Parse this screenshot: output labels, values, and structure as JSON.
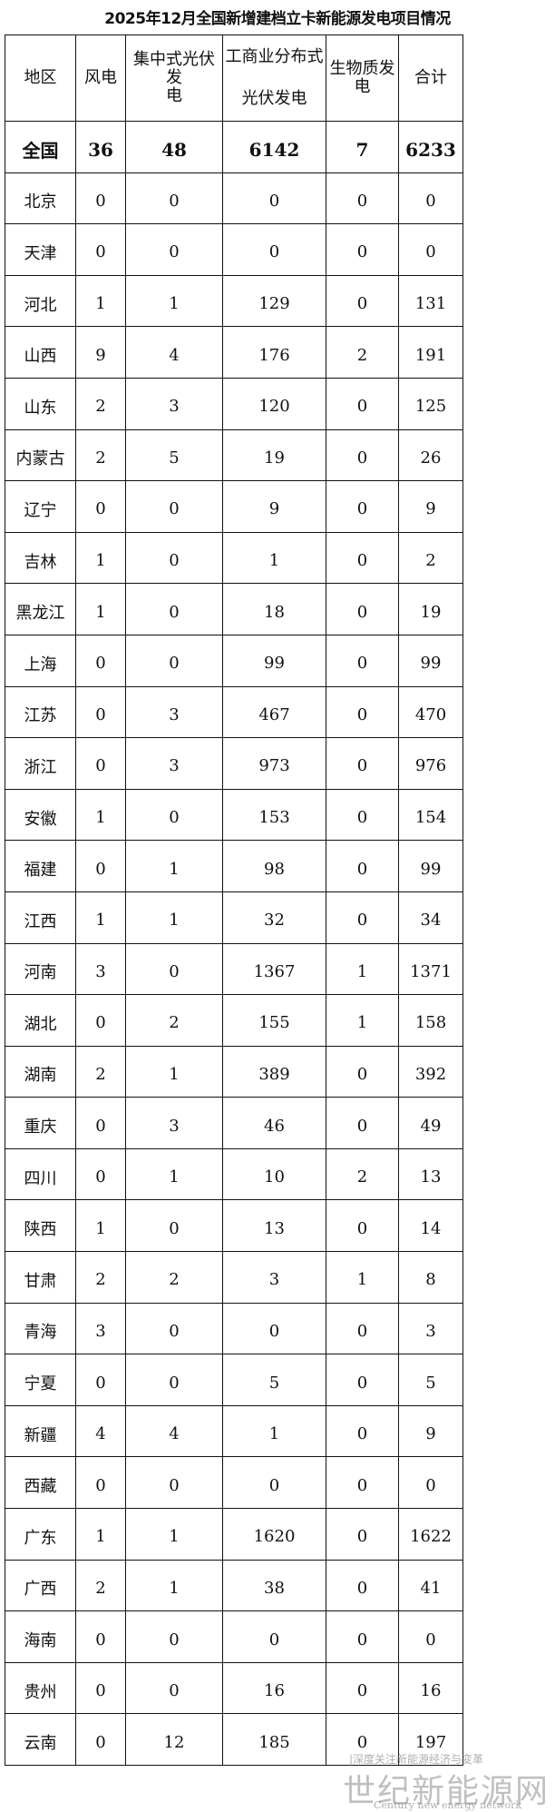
{
  "title": "2025年12月全国新增建档立卡新能源发电项目情况",
  "headers": [
    "地区",
    "风电",
    "集中式光伏发电",
    "工商业分布式光伏发电",
    "生物质发电",
    "合计"
  ],
  "header_lines": {
    "col2": [
      "集中式光伏发",
      "电"
    ],
    "col3": [
      "工商业分布式",
      "光伏发电"
    ],
    "col4": [
      "生物质发",
      "电"
    ]
  },
  "rows": [
    [
      "全国",
      "36",
      "48",
      "6142",
      "7",
      "6233"
    ],
    [
      "北京",
      "0",
      "0",
      "0",
      "0",
      "0"
    ],
    [
      "天津",
      "0",
      "0",
      "0",
      "0",
      "0"
    ],
    [
      "河北",
      "1",
      "1",
      "129",
      "0",
      "131"
    ],
    [
      "山西",
      "9",
      "4",
      "176",
      "2",
      "191"
    ],
    [
      "山东",
      "2",
      "3",
      "120",
      "0",
      "125"
    ],
    [
      "内蒙古",
      "2",
      "5",
      "19",
      "0",
      "26"
    ],
    [
      "辽宁",
      "0",
      "0",
      "9",
      "0",
      "9"
    ],
    [
      "吉林",
      "1",
      "0",
      "1",
      "0",
      "2"
    ],
    [
      "黑龙江",
      "1",
      "0",
      "18",
      "0",
      "19"
    ],
    [
      "上海",
      "0",
      "0",
      "99",
      "0",
      "99"
    ],
    [
      "江苏",
      "0",
      "3",
      "467",
      "0",
      "470"
    ],
    [
      "浙江",
      "0",
      "3",
      "973",
      "0",
      "976"
    ],
    [
      "安徽",
      "1",
      "0",
      "153",
      "0",
      "154"
    ],
    [
      "福建",
      "0",
      "1",
      "98",
      "0",
      "99"
    ],
    [
      "江西",
      "1",
      "1",
      "32",
      "0",
      "34"
    ],
    [
      "河南",
      "3",
      "0",
      "1367",
      "1",
      "1371"
    ],
    [
      "湖北",
      "0",
      "2",
      "155",
      "1",
      "158"
    ],
    [
      "湖南",
      "2",
      "1",
      "389",
      "0",
      "392"
    ],
    [
      "重庆",
      "0",
      "3",
      "46",
      "0",
      "49"
    ],
    [
      "四川",
      "0",
      "1",
      "10",
      "2",
      "13"
    ],
    [
      "陕西",
      "1",
      "0",
      "13",
      "0",
      "14"
    ],
    [
      "甘肃",
      "2",
      "2",
      "3",
      "1",
      "8"
    ],
    [
      "青海",
      "3",
      "0",
      "0",
      "0",
      "3"
    ],
    [
      "宁夏",
      "0",
      "0",
      "5",
      "0",
      "5"
    ],
    [
      "新疆",
      "4",
      "4",
      "1",
      "0",
      "9"
    ],
    [
      "西藏",
      "0",
      "0",
      "0",
      "0",
      "0"
    ],
    [
      "广东",
      "1",
      "1",
      "1620",
      "0",
      "1622"
    ],
    [
      "广西",
      "2",
      "1",
      "38",
      "0",
      "41"
    ],
    [
      "海南",
      "0",
      "0",
      "0",
      "0",
      "0"
    ],
    [
      "贵州",
      "0",
      "0",
      "16",
      "0",
      "16"
    ],
    [
      "云南",
      "0",
      "12",
      "185",
      "0",
      "197"
    ]
  ],
  "watermark": {
    "tagline": "|深度关注新能源经济与变革",
    "logo": "世纪新能源网",
    "english": "Century new energy network"
  }
}
